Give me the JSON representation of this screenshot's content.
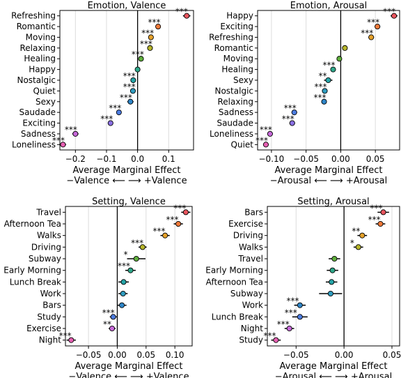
{
  "chart_data": [
    {
      "type": "scatter",
      "title": "Emotion, Valence",
      "xlabel": "Average Marginal Effect",
      "xlabel2": "−Valence ⟵ ⟶ +Valence",
      "xlim": [
        -0.25,
        0.18
      ],
      "xticks": [
        -0.2,
        -0.1,
        0.0,
        0.1
      ],
      "xtick_labels": [
        "−0.2",
        "−0.1",
        "0.0",
        "0.1"
      ],
      "grid": "vertical",
      "categories": [
        "Refreshing",
        "Romantic",
        "Moving",
        "Relaxing",
        "Healing",
        "Happy",
        "Nostalgic",
        "Quiet",
        "Sexy",
        "Saudade",
        "Exciting",
        "Sadness",
        "Loneliness"
      ],
      "values": [
        0.158,
        0.066,
        0.043,
        0.04,
        0.011,
        0.0,
        -0.014,
        -0.015,
        -0.023,
        -0.06,
        -0.087,
        -0.2,
        -0.24
      ],
      "ci_half": [
        0.012,
        0.008,
        0.006,
        0.008,
        0.006,
        0.006,
        0.008,
        0.007,
        0.01,
        0.008,
        0.008,
        0.01,
        0.01
      ],
      "significance": [
        "***",
        "***",
        "***",
        "***",
        "***",
        "",
        "***",
        "***",
        "***",
        "***",
        "***",
        "***",
        "***"
      ],
      "colors": [
        "#e8555e",
        "#f07a3a",
        "#e5a12a",
        "#b7b52a",
        "#5fae3c",
        "#2ea88a",
        "#26a5a8",
        "#2f9cbf",
        "#2f86c8",
        "#4c7ce0",
        "#8a6fe3",
        "#c769d9",
        "#e660b2"
      ]
    },
    {
      "type": "scatter",
      "title": "Emotion, Arousal",
      "xlabel": "Average Marginal Effect",
      "xlabel2": "−Arousal ⟵ ⟶ +Arousal",
      "xlim": [
        -0.12,
        0.085
      ],
      "xticks": [
        -0.1,
        -0.05,
        0.0,
        0.05
      ],
      "xtick_labels": [
        "−0.10",
        "−0.05",
        "0.00",
        "0.05"
      ],
      "grid": "vertical",
      "categories": [
        "Happy",
        "Exciting",
        "Refreshing",
        "Romantic",
        "Moving",
        "Healing",
        "Sexy",
        "Nostalgic",
        "Relaxing",
        "Sadness",
        "Saudade",
        "Loneliness",
        "Quiet"
      ],
      "values": [
        0.077,
        0.053,
        0.044,
        0.006,
        -0.002,
        -0.011,
        -0.018,
        -0.023,
        -0.024,
        -0.067,
        -0.07,
        -0.102,
        -0.108
      ],
      "ci_half": [
        0.005,
        0.004,
        0.004,
        0.003,
        0.003,
        0.004,
        0.006,
        0.004,
        0.004,
        0.004,
        0.004,
        0.004,
        0.004
      ],
      "significance": [
        "***",
        "***",
        "***",
        "",
        "",
        "***",
        "**",
        "***",
        "***",
        "***",
        "***",
        "***",
        "***"
      ],
      "colors": [
        "#e8555e",
        "#f07a3a",
        "#e5a12a",
        "#b7b52a",
        "#5fae3c",
        "#2ea88a",
        "#26a5a8",
        "#2f9cbf",
        "#2f86c8",
        "#4c7ce0",
        "#8a6fe3",
        "#c769d9",
        "#e660b2"
      ]
    },
    {
      "type": "scatter",
      "title": "Setting, Valence",
      "xlabel": "Average Marginal Effect",
      "xlabel2": "−Valence ⟵ ⟶ +Valence",
      "xlim": [
        -0.09,
        0.13
      ],
      "xticks": [
        -0.05,
        0.0,
        0.05,
        0.1
      ],
      "xtick_labels": [
        "−0.05",
        "0.00",
        "0.05",
        "0.10"
      ],
      "grid": "vertical",
      "categories": [
        "Travel",
        "Afternoon Tea",
        "Walks",
        "Driving",
        "Subway",
        "Early Morning",
        "Lunch Break",
        "Work",
        "Bars",
        "Study",
        "Exercise",
        "Night"
      ],
      "values": [
        0.119,
        0.106,
        0.083,
        0.044,
        0.033,
        0.023,
        0.011,
        0.01,
        0.008,
        -0.007,
        -0.009,
        -0.08
      ],
      "ci_half": [
        0.008,
        0.008,
        0.008,
        0.007,
        0.016,
        0.009,
        0.009,
        0.008,
        0.008,
        0.006,
        0.006,
        0.008
      ],
      "significance": [
        "***",
        "***",
        "***",
        "***",
        "*",
        "***",
        "",
        "",
        "",
        "***",
        "**",
        "***"
      ],
      "colors": [
        "#e8555e",
        "#f07a3a",
        "#e5a12a",
        "#b7b52a",
        "#5fae3c",
        "#2ea88a",
        "#26a5a8",
        "#2f9cbf",
        "#2f86c8",
        "#4c7ce0",
        "#c769d9",
        "#e660b2"
      ]
    },
    {
      "type": "scatter",
      "title": "Setting, Arousal",
      "xlabel": "Average Marginal Effect",
      "xlabel2": "−Arousal ⟵ ⟶ +Arousal",
      "xlim": [
        -0.08,
        0.058
      ],
      "xticks": [
        -0.05,
        0.0,
        0.05
      ],
      "xtick_labels": [
        "−0.05",
        "0.00",
        "0.05"
      ],
      "grid": "vertical",
      "categories": [
        "Bars",
        "Exercise",
        "Driving",
        "Walks",
        "Travel",
        "Early Morning",
        "Afternoon Tea",
        "Subway",
        "Work",
        "Lunch Break",
        "Night",
        "Study"
      ],
      "values": [
        0.041,
        0.038,
        0.019,
        0.015,
        -0.01,
        -0.012,
        -0.013,
        -0.014,
        -0.046,
        -0.046,
        -0.057,
        -0.071
      ],
      "ci_half": [
        0.006,
        0.005,
        0.005,
        0.005,
        0.006,
        0.006,
        0.006,
        0.012,
        0.006,
        0.008,
        0.005,
        0.005
      ],
      "significance": [
        "***",
        "***",
        "**",
        "*",
        "",
        "",
        "",
        "",
        "***",
        "***",
        "***",
        "***"
      ],
      "colors": [
        "#e8555e",
        "#f07a3a",
        "#e5a12a",
        "#b7b52a",
        "#5fae3c",
        "#2ea88a",
        "#26a5a8",
        "#2f9cbf",
        "#2f86c8",
        "#4c7ce0",
        "#c769d9",
        "#e660b2"
      ]
    }
  ]
}
